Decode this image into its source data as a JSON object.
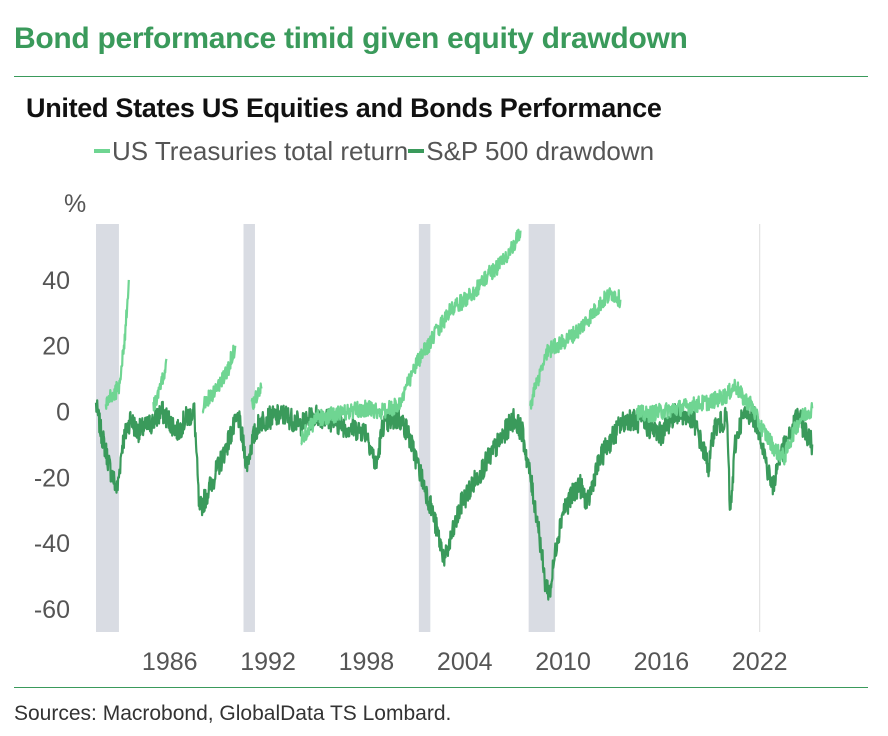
{
  "headline": "Bond performance timid given equity drawdown",
  "source": "Sources: Macrobond, GlobalData TS Lombard.",
  "colors": {
    "accent": "#3a9a5b",
    "treasuries": "#6fd592",
    "drawdown": "#3a9a5b",
    "recession": "#d9dce3"
  },
  "chart_data": {
    "type": "line",
    "title": "United States US Equities and Bonds Performance",
    "ylabel": "%",
    "xlim": [
      1981.5,
      2025.8
    ],
    "ylim": [
      -67,
      57
    ],
    "yticks": [
      40,
      20,
      0,
      -20,
      -40,
      -60
    ],
    "ytick_labels": [
      "40",
      "20",
      "0",
      "-20",
      "-40",
      "-60"
    ],
    "xticks": [
      1986,
      1992,
      1998,
      2004,
      2010,
      2016,
      2022
    ],
    "xtick_labels": [
      "1986",
      "1992",
      "1998",
      "2004",
      "2010",
      "2016",
      "2022"
    ],
    "legend_position": "top",
    "grid": "vertical line at 2022",
    "recessions": [
      [
        1981.5,
        1982.9
      ],
      [
        1990.5,
        1991.2
      ],
      [
        2001.2,
        2001.9
      ],
      [
        2007.9,
        2009.5
      ]
    ],
    "series": [
      {
        "name": "US Treasuries total return",
        "segments": [
          [
            [
              1982.1,
              2
            ],
            [
              1982.3,
              4
            ],
            [
              1982.6,
              5
            ],
            [
              1982.9,
              8
            ],
            [
              1983.1,
              15
            ],
            [
              1983.3,
              25
            ],
            [
              1983.5,
              40
            ]
          ],
          [
            [
              1985.0,
              2
            ],
            [
              1985.3,
              5
            ],
            [
              1985.6,
              10
            ],
            [
              1985.8,
              16
            ]
          ],
          [
            [
              1988.0,
              2
            ],
            [
              1988.5,
              5
            ],
            [
              1989.0,
              8
            ],
            [
              1989.5,
              12
            ],
            [
              1990.0,
              20
            ]
          ],
          [
            [
              1991.0,
              2
            ],
            [
              1991.4,
              5
            ],
            [
              1991.6,
              7
            ]
          ],
          [
            [
              1994.0,
              -8
            ],
            [
              1994.5,
              -5
            ],
            [
              1995.0,
              -2
            ],
            [
              1996.0,
              -1
            ],
            [
              1997.0,
              0
            ],
            [
              1998.0,
              1
            ],
            [
              1999.0,
              0
            ],
            [
              2000.0,
              2
            ],
            [
              2000.5,
              8
            ],
            [
              2001.0,
              14
            ],
            [
              2001.5,
              18
            ],
            [
              2002.0,
              22
            ],
            [
              2002.5,
              26
            ],
            [
              2003.0,
              30
            ],
            [
              2003.5,
              32
            ],
            [
              2004.0,
              34
            ],
            [
              2004.5,
              36
            ],
            [
              2005.0,
              39
            ],
            [
              2005.5,
              42
            ],
            [
              2006.0,
              44
            ],
            [
              2006.5,
              47
            ],
            [
              2007.0,
              50
            ],
            [
              2007.4,
              55
            ]
          ],
          [
            [
              2008.0,
              2
            ],
            [
              2008.5,
              10
            ],
            [
              2009.0,
              18
            ],
            [
              2009.5,
              20
            ],
            [
              2010.0,
              21
            ],
            [
              2010.5,
              23
            ],
            [
              2011.0,
              25
            ],
            [
              2011.5,
              28
            ],
            [
              2012.0,
              31
            ],
            [
              2012.5,
              34
            ],
            [
              2013.0,
              36
            ],
            [
              2013.5,
              34
            ]
          ],
          [
            [
              2014.5,
              0
            ],
            [
              2015.0,
              -1
            ],
            [
              2016.0,
              0
            ],
            [
              2017.0,
              1
            ],
            [
              2018.0,
              2
            ],
            [
              2019.0,
              3
            ],
            [
              2020.0,
              5
            ],
            [
              2020.5,
              8
            ],
            [
              2021.0,
              4
            ],
            [
              2021.5,
              2
            ],
            [
              2022.0,
              -4
            ],
            [
              2022.5,
              -8
            ],
            [
              2023.0,
              -12
            ],
            [
              2023.5,
              -14
            ],
            [
              2024.0,
              -7
            ],
            [
              2024.5,
              -2
            ],
            [
              2025.2,
              1
            ]
          ]
        ]
      },
      {
        "name": "S&P 500 drawdown",
        "segments": [
          [
            [
              1981.5,
              2
            ],
            [
              1981.8,
              -6
            ],
            [
              1982.1,
              -12
            ],
            [
              1982.4,
              -18
            ],
            [
              1982.8,
              -24
            ],
            [
              1983.1,
              -10
            ],
            [
              1983.6,
              -2
            ],
            [
              1984.0,
              -6
            ],
            [
              1984.5,
              -5
            ],
            [
              1985.0,
              -3
            ],
            [
              1985.5,
              0
            ],
            [
              1986.0,
              -3
            ],
            [
              1986.5,
              -6
            ],
            [
              1987.0,
              -2
            ],
            [
              1987.5,
              0
            ],
            [
              1987.8,
              -30
            ],
            [
              1988.2,
              -26
            ],
            [
              1988.7,
              -20
            ],
            [
              1989.2,
              -14
            ],
            [
              1989.8,
              -6
            ],
            [
              1990.2,
              -2
            ],
            [
              1990.7,
              -16
            ],
            [
              1991.1,
              -8
            ],
            [
              1991.5,
              -3
            ],
            [
              1992.0,
              -2
            ],
            [
              1993.0,
              -1
            ],
            [
              1994.0,
              -4
            ],
            [
              1995.0,
              -1
            ],
            [
              1996.0,
              -3
            ],
            [
              1997.0,
              -5
            ],
            [
              1998.0,
              -6
            ],
            [
              1998.6,
              -17
            ],
            [
              1999.0,
              -4
            ],
            [
              2000.0,
              -2
            ],
            [
              2000.5,
              -6
            ],
            [
              2001.0,
              -14
            ],
            [
              2001.5,
              -22
            ],
            [
              2002.0,
              -30
            ],
            [
              2002.5,
              -40
            ],
            [
              2002.8,
              -45
            ],
            [
              2003.2,
              -38
            ],
            [
              2003.8,
              -28
            ],
            [
              2004.5,
              -22
            ],
            [
              2005.0,
              -18
            ],
            [
              2005.5,
              -14
            ],
            [
              2006.0,
              -10
            ],
            [
              2006.5,
              -6
            ],
            [
              2007.0,
              -2
            ],
            [
              2007.5,
              -6
            ],
            [
              2008.0,
              -20
            ],
            [
              2008.5,
              -35
            ],
            [
              2008.9,
              -52
            ],
            [
              2009.2,
              -55
            ],
            [
              2009.6,
              -40
            ],
            [
              2010.0,
              -30
            ],
            [
              2010.5,
              -26
            ],
            [
              2011.0,
              -22
            ],
            [
              2011.5,
              -28
            ],
            [
              2012.0,
              -18
            ],
            [
              2012.5,
              -12
            ],
            [
              2013.0,
              -8
            ],
            [
              2013.5,
              -4
            ],
            [
              2014.0,
              -2
            ],
            [
              2015.0,
              -4
            ],
            [
              2016.0,
              -7
            ],
            [
              2016.5,
              -3
            ],
            [
              2017.0,
              0
            ],
            [
              2018.0,
              -3
            ],
            [
              2018.9,
              -17
            ],
            [
              2019.2,
              -5
            ],
            [
              2020.0,
              -2
            ],
            [
              2020.2,
              -32
            ],
            [
              2020.5,
              -10
            ],
            [
              2020.9,
              -2
            ],
            [
              2021.5,
              0
            ],
            [
              2022.0,
              -6
            ],
            [
              2022.5,
              -18
            ],
            [
              2022.8,
              -23
            ],
            [
              2023.2,
              -14
            ],
            [
              2023.8,
              -8
            ],
            [
              2024.3,
              -1
            ],
            [
              2024.8,
              -6
            ],
            [
              2025.2,
              -10
            ]
          ]
        ]
      }
    ]
  }
}
